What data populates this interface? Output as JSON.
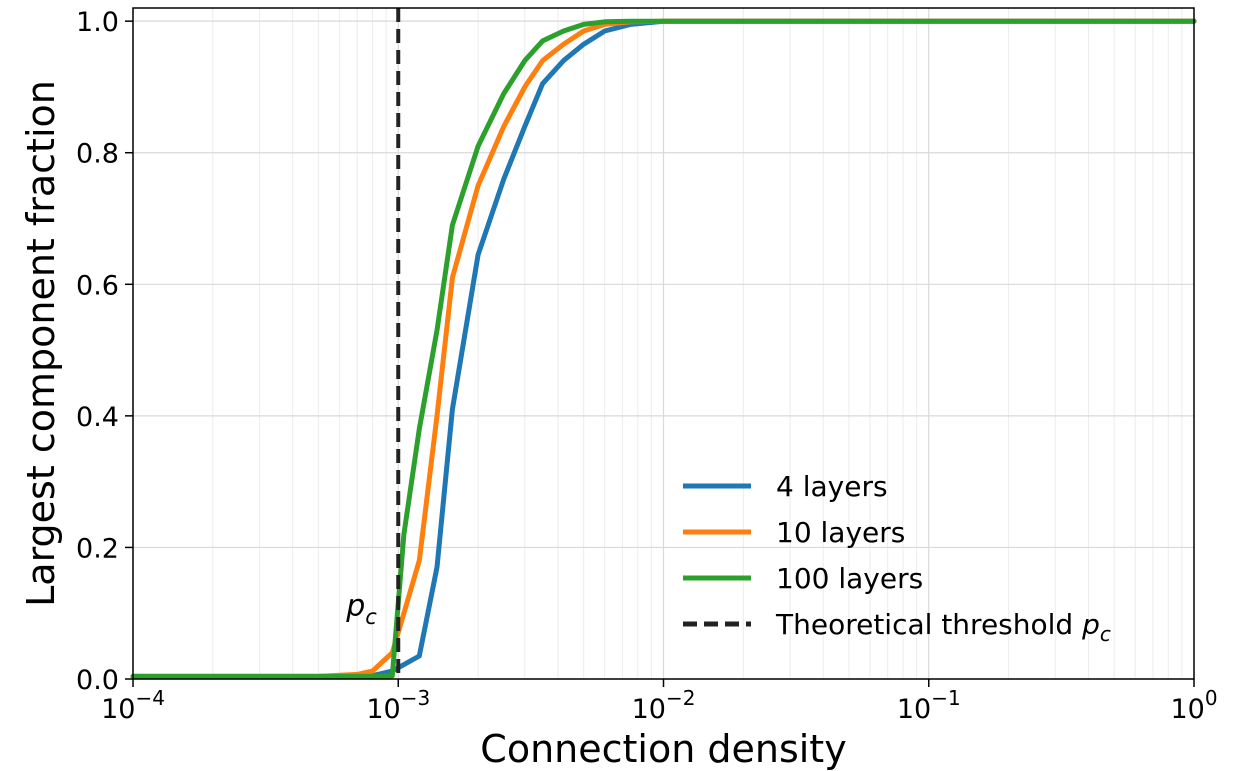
{
  "chart_data": {
    "type": "line",
    "title": "",
    "xlabel": "Connection density",
    "ylabel": "Largest component fraction",
    "xscale": "log",
    "xlim": [
      0.0001,
      1
    ],
    "ylim": [
      0.0,
      1.02
    ],
    "grid": true,
    "legend_position": "lower-right",
    "x_tick_labels": [
      {
        "value": 0.0001,
        "base": "10",
        "exp": "−4"
      },
      {
        "value": 0.001,
        "base": "10",
        "exp": "−3"
      },
      {
        "value": 0.01,
        "base": "10",
        "exp": "−2"
      },
      {
        "value": 0.1,
        "base": "10",
        "exp": "−1"
      },
      {
        "value": 1,
        "base": "10",
        "exp": "0"
      }
    ],
    "y_ticks": [
      0.0,
      0.2,
      0.4,
      0.6,
      0.8,
      1.0
    ],
    "y_tick_labels": [
      "0.0",
      "0.2",
      "0.4",
      "0.6",
      "0.8",
      "1.0"
    ],
    "series": [
      {
        "name": "4 layers",
        "color": "#1f77b4",
        "x": [
          0.0001,
          0.0002,
          0.0005,
          0.0008,
          0.00095,
          0.0012,
          0.0014,
          0.0016,
          0.002,
          0.0025,
          0.003,
          0.0035,
          0.0042,
          0.005,
          0.006,
          0.0075,
          0.01,
          0.02,
          1
        ],
        "y": [
          0.004,
          0.004,
          0.004,
          0.005,
          0.012,
          0.035,
          0.17,
          0.41,
          0.645,
          0.76,
          0.84,
          0.905,
          0.94,
          0.965,
          0.985,
          0.995,
          1.0,
          1.0,
          1.0
        ]
      },
      {
        "name": "10 layers",
        "color": "#ff7f0e",
        "x": [
          0.0001,
          0.0002,
          0.0005,
          0.0007,
          0.0008,
          0.00095,
          0.00105,
          0.0012,
          0.0014,
          0.0016,
          0.002,
          0.0025,
          0.003,
          0.0035,
          0.0042,
          0.005,
          0.006,
          0.0075,
          0.01,
          1
        ],
        "y": [
          0.004,
          0.004,
          0.004,
          0.007,
          0.012,
          0.04,
          0.1,
          0.18,
          0.4,
          0.61,
          0.75,
          0.84,
          0.9,
          0.94,
          0.965,
          0.985,
          0.995,
          0.999,
          1.0,
          1.0
        ]
      },
      {
        "name": "100 layers",
        "color": "#2ca02c",
        "x": [
          0.0001,
          0.0002,
          0.0005,
          0.0008,
          0.00095,
          0.00105,
          0.0012,
          0.0014,
          0.0016,
          0.002,
          0.0025,
          0.003,
          0.0035,
          0.0042,
          0.005,
          0.006,
          0.0075,
          0.01,
          1
        ],
        "y": [
          0.004,
          0.004,
          0.004,
          0.004,
          0.005,
          0.22,
          0.38,
          0.53,
          0.69,
          0.81,
          0.89,
          0.94,
          0.97,
          0.985,
          0.995,
          0.999,
          1.0,
          1.0,
          1.0
        ]
      }
    ],
    "threshold": {
      "x": 0.001,
      "label": "Theoretical threshold",
      "annotation_base": "p",
      "annotation_sub": "c",
      "color": "#222222"
    }
  }
}
